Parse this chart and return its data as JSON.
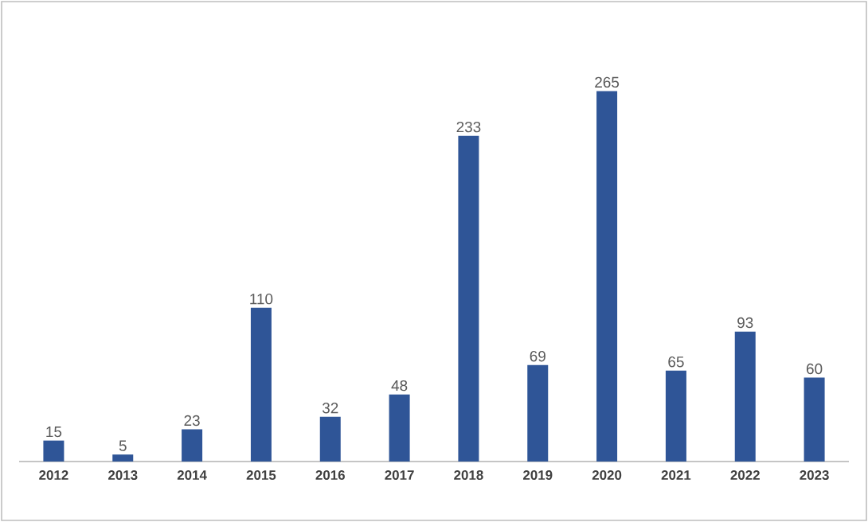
{
  "chart_data": {
    "type": "bar",
    "categories": [
      "2012",
      "2013",
      "2014",
      "2015",
      "2016",
      "2017",
      "2018",
      "2019",
      "2020",
      "2021",
      "2022",
      "2023"
    ],
    "values": [
      15,
      5,
      23,
      110,
      32,
      48,
      233,
      69,
      265,
      65,
      93,
      60
    ],
    "color": "#2f5597",
    "data_labels": true
  }
}
